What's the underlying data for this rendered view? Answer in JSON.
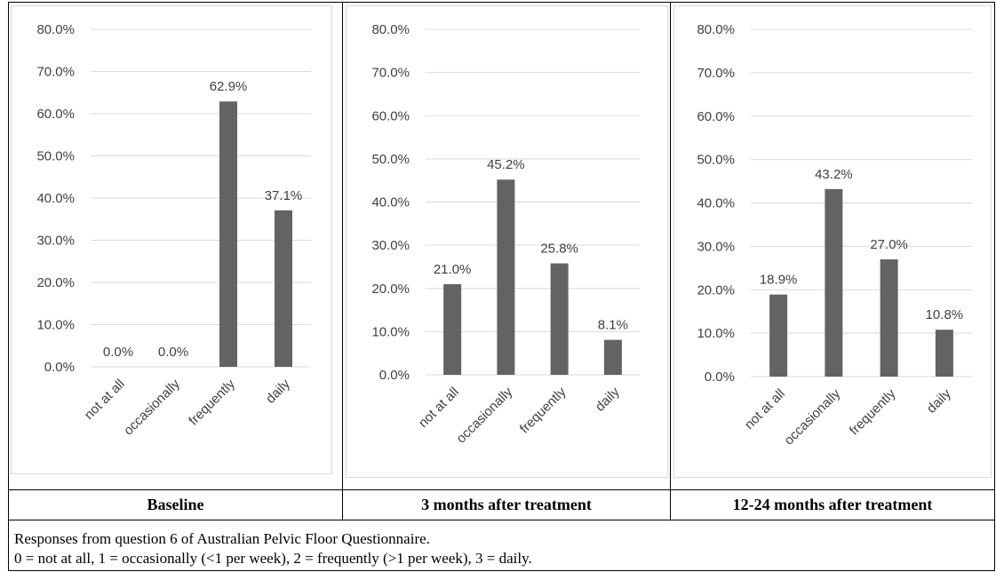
{
  "chart_data": [
    {
      "type": "bar",
      "categories": [
        "not at all",
        "occasionally",
        "frequently",
        "daily"
      ],
      "values": [
        0.0,
        0.0,
        62.9,
        37.1
      ],
      "data_labels": [
        "0.0%",
        "0.0%",
        "62.9%",
        "37.1%"
      ],
      "y_ticks": [
        "0.0%",
        "10.0%",
        "20.0%",
        "30.0%",
        "40.0%",
        "50.0%",
        "60.0%",
        "70.0%",
        "80.0%"
      ],
      "ylim": [
        0,
        80
      ],
      "grid": true,
      "title": "Baseline"
    },
    {
      "type": "bar",
      "categories": [
        "not at all",
        "occasionally",
        "frequently",
        "daily"
      ],
      "values": [
        21.0,
        45.2,
        25.8,
        8.1
      ],
      "data_labels": [
        "21.0%",
        "45.2%",
        "25.8%",
        "8.1%"
      ],
      "y_ticks": [
        "0.0%",
        "10.0%",
        "20.0%",
        "30.0%",
        "40.0%",
        "50.0%",
        "60.0%",
        "70.0%",
        "80.0%"
      ],
      "ylim": [
        0,
        80
      ],
      "grid": true,
      "title": "3 months after treatment"
    },
    {
      "type": "bar",
      "categories": [
        "not at all",
        "occasionally",
        "frequently",
        "daily"
      ],
      "values": [
        18.9,
        43.2,
        27.0,
        10.8
      ],
      "data_labels": [
        "18.9%",
        "43.2%",
        "27.0%",
        "10.8%"
      ],
      "y_ticks": [
        "0.0%",
        "10.0%",
        "20.0%",
        "30.0%",
        "40.0%",
        "50.0%",
        "60.0%",
        "70.0%",
        "80.0%"
      ],
      "ylim": [
        0,
        80
      ],
      "grid": true,
      "title": "12-24 months after treatment"
    }
  ],
  "colors": {
    "bar": "#636363",
    "grid": "#d9d9d9",
    "text": "#404040",
    "frame": "#d9d9d9"
  },
  "notes": [
    "Responses from question 6 of Australian Pelvic Floor Questionnaire.",
    "0 = not at all, 1 = occasionally (<1 per week), 2 = frequently (>1 per week), 3 = daily."
  ]
}
